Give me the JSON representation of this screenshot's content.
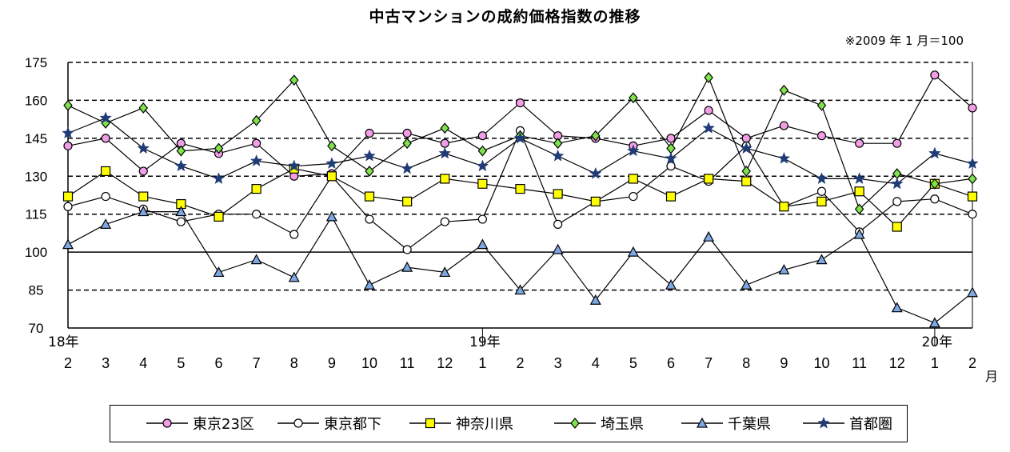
{
  "chart_data": {
    "type": "line",
    "title": "中古マンションの成約価格指数の推移",
    "note": "※2009 年 1 月＝100",
    "y_ticks": [
      "70",
      "85",
      "100",
      "115",
      "130",
      "145",
      "160",
      "175"
    ],
    "ylim": [
      70,
      175
    ],
    "reference_line": 100,
    "grid": "dashed horizontal",
    "year_labels": [
      {
        "label": "18年",
        "index": 0
      },
      {
        "label": "19年",
        "index": 11
      },
      {
        "label": "20年",
        "index": 23
      }
    ],
    "categories": [
      "2",
      "3",
      "4",
      "5",
      "6",
      "7",
      "8",
      "9",
      "10",
      "11",
      "12",
      "1",
      "2",
      "3",
      "4",
      "5",
      "6",
      "7",
      "8",
      "9",
      "10",
      "11",
      "12",
      "1",
      "2"
    ],
    "month_unit": "月",
    "legend_position": "bottom",
    "series": [
      {
        "name": "東京23区",
        "marker": "circle-filled",
        "color": "#f29ee6",
        "values": [
          142,
          145,
          132,
          143,
          139,
          143,
          130,
          131,
          147,
          147,
          143,
          146,
          159,
          146,
          145,
          142,
          145,
          156,
          145,
          150,
          146,
          143,
          143,
          170,
          157
        ]
      },
      {
        "name": "東京都下",
        "marker": "circle-open",
        "color": "#ffffff",
        "values": [
          118,
          122,
          117,
          112,
          115,
          115,
          107,
          130,
          113,
          101,
          112,
          113,
          148,
          111,
          120,
          122,
          134,
          128,
          142,
          118,
          124,
          108,
          120,
          121,
          115
        ]
      },
      {
        "name": "神奈川県",
        "marker": "square",
        "color": "#ffff00",
        "values": [
          122,
          132,
          122,
          119,
          114,
          125,
          133,
          130,
          122,
          120,
          129,
          127,
          125,
          123,
          120,
          129,
          122,
          129,
          128,
          118,
          120,
          124,
          110,
          127,
          122
        ]
      },
      {
        "name": "埼玉県",
        "marker": "diamond",
        "color": "#7fe34d",
        "values": [
          158,
          151,
          157,
          140,
          141,
          152,
          168,
          142,
          132,
          143,
          149,
          140,
          146,
          143,
          146,
          161,
          141,
          169,
          132,
          164,
          158,
          117,
          131,
          127,
          129
        ]
      },
      {
        "name": "千葉県",
        "marker": "triangle",
        "color": "#7fa7e3",
        "values": [
          103,
          111,
          116,
          116,
          92,
          97,
          90,
          114,
          87,
          94,
          92,
          103,
          85,
          101,
          81,
          100,
          87,
          106,
          87,
          93,
          97,
          107,
          78,
          72,
          84
        ]
      },
      {
        "name": "首都圏",
        "marker": "star",
        "color": "#1f3c78",
        "values": [
          147,
          153,
          141,
          134,
          129,
          136,
          134,
          135,
          138,
          133,
          139,
          134,
          145,
          138,
          131,
          140,
          137,
          149,
          141,
          137,
          129,
          129,
          127,
          139,
          135
        ]
      }
    ]
  }
}
